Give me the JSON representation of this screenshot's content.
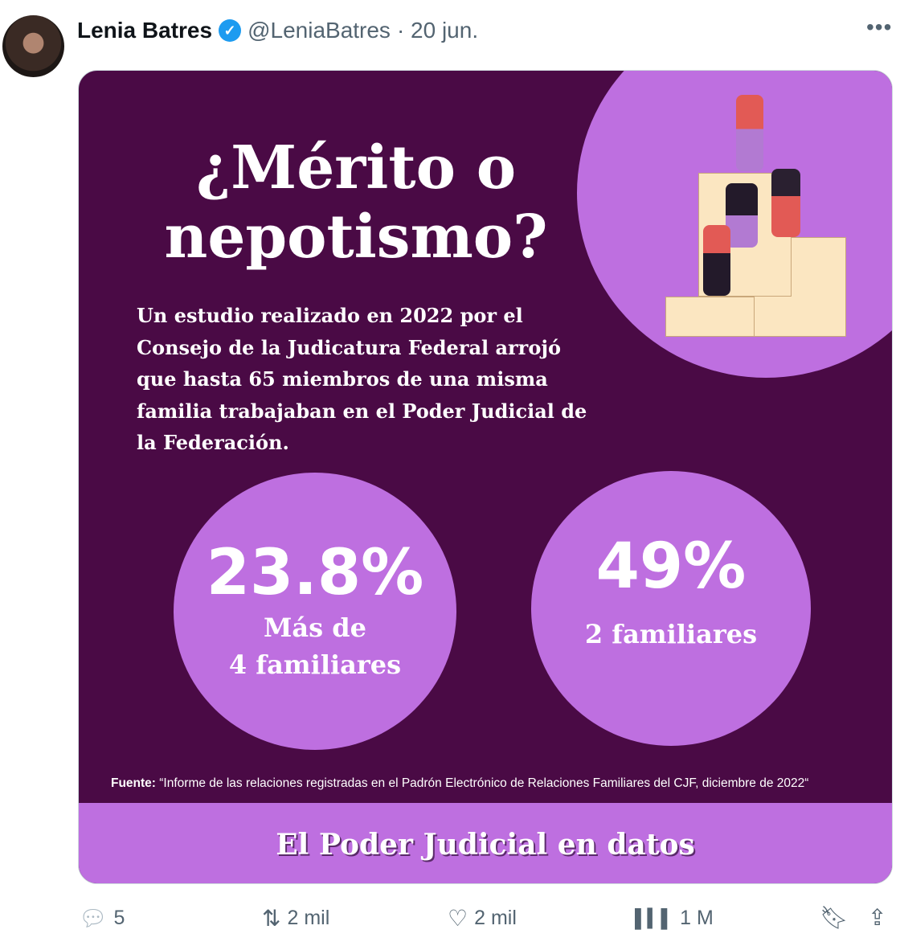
{
  "tweet": {
    "name": "Lenia Batres",
    "handle": "@LeniaBatres",
    "date": "· 20 jun.",
    "verified": true,
    "more": "•••"
  },
  "image": {
    "title_line1": "¿Mérito o",
    "title_line2": "nepotismo?",
    "body": "Un estudio realizado en 2022 por el Consejo de la Judicatura Federal arrojó que hasta 65 miembros de una misma familia trabajaban en el Poder Judicial de la Federación.",
    "stats": [
      {
        "value": "23.8%",
        "label1": "Más de",
        "label2": "4 familiares"
      },
      {
        "value": "49%",
        "label1": "2 familiares"
      }
    ],
    "source_label": "Fuente:",
    "source_text": " “Informe de las relaciones registradas en el Padrón Electrónico de Relaciones Familiares del CJF, diciembre de 2022“",
    "footer": "El Poder Judicial en datos",
    "colors": {
      "dark": "#4a0a45",
      "light": "#be6fe0",
      "block": "#fbe6c1"
    }
  },
  "actions": {
    "replies": "5",
    "retweets": "2 mil",
    "likes": "2 mil",
    "views": "1 M"
  }
}
